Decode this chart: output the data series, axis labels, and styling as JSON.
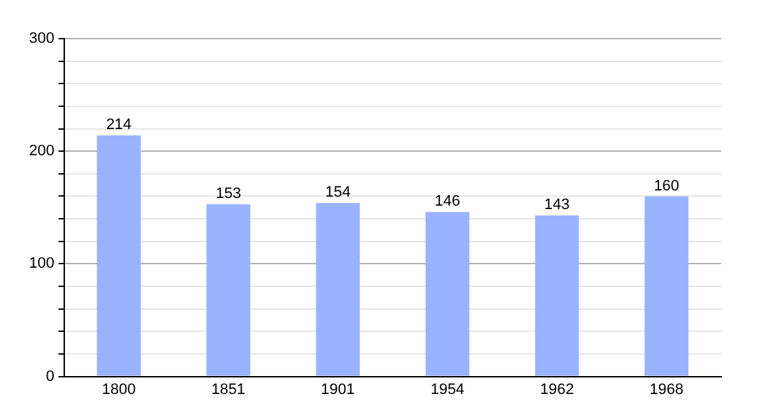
{
  "chart_data": {
    "type": "bar",
    "categories": [
      "1800",
      "1851",
      "1901",
      "1954",
      "1962",
      "1968"
    ],
    "values": [
      214,
      153,
      154,
      146,
      143,
      160
    ],
    "color": "#99b3ff",
    "ylim": [
      0,
      300
    ],
    "yticks": [
      0,
      {
        "value": 20,
        "label": null
      },
      {
        "value": 40,
        "label": null
      },
      {
        "value": 60,
        "label": null
      },
      {
        "value": 80,
        "label": null
      },
      100,
      {
        "value": 120,
        "label": null
      },
      {
        "value": 140,
        "label": null
      },
      {
        "value": 160,
        "label": null
      },
      {
        "value": 180,
        "label": null
      },
      200,
      {
        "value": 220,
        "label": null
      },
      {
        "value": 240,
        "label": null
      },
      {
        "value": 260,
        "label": null
      },
      {
        "value": 280,
        "label": null
      },
      300
    ],
    "grid": "y",
    "data_labels": true,
    "legend": false
  }
}
